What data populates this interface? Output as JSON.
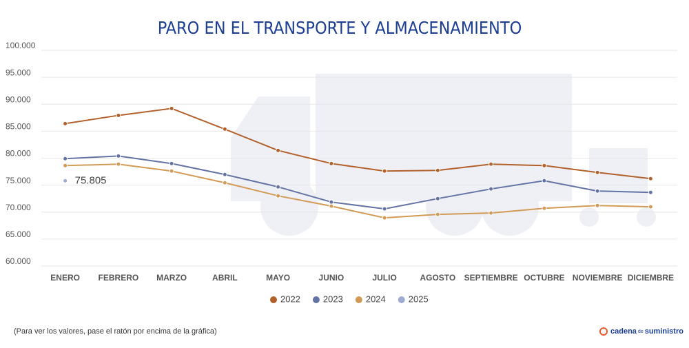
{
  "chart_data": {
    "type": "line",
    "title": "PARO EN EL TRANSPORTE Y ALMACENAMIENTO",
    "categories": [
      "ENERO",
      "FEBRERO",
      "MARZO",
      "ABRIL",
      "MAYO",
      "JUNIO",
      "JULIO",
      "AGOSTO",
      "SEPTIEMBRE",
      "OCTUBRE",
      "NOVIEMBRE",
      "DICIEMBRE"
    ],
    "series": [
      {
        "name": "2022",
        "color": "#b3612a",
        "values": [
          86400,
          87930,
          89210,
          85380,
          81430,
          79000,
          77600,
          77730,
          78880,
          78620,
          77350,
          76200
        ]
      },
      {
        "name": "2023",
        "color": "#6373a3",
        "values": [
          79900,
          80400,
          79000,
          76960,
          74670,
          71860,
          70590,
          72500,
          74290,
          75820,
          73900,
          73650
        ]
      },
      {
        "name": "2024",
        "color": "#d29a55",
        "values": [
          78620,
          78880,
          77600,
          75430,
          73010,
          71100,
          68930,
          69570,
          69820,
          70710,
          71220,
          70970
        ]
      },
      {
        "name": "2025",
        "color": "#9fabd3",
        "values": [
          75805,
          null,
          null,
          null,
          null,
          null,
          null,
          null,
          null,
          null,
          null,
          null
        ],
        "value_labels": [
          "75.805",
          null,
          null,
          null,
          null,
          null,
          null,
          null,
          null,
          null,
          null,
          null
        ]
      }
    ],
    "ylim": [
      60000,
      100000
    ],
    "yticks": [
      {
        "value": 60000,
        "label": "60.000"
      },
      {
        "value": 65000,
        "label": "65.000"
      },
      {
        "value": 70000,
        "label": "70.000"
      },
      {
        "value": 75000,
        "label": "75.000"
      },
      {
        "value": 80000,
        "label": "80.000"
      },
      {
        "value": 85000,
        "label": "85.000"
      },
      {
        "value": 90000,
        "label": "90.000"
      },
      {
        "value": 95000,
        "label": "95.000"
      },
      {
        "value": 100000,
        "label": "100.000"
      }
    ],
    "grid": true,
    "legend": "bottom",
    "note": "(Para ver los valores, pase el ratón por encima de la gráfica)",
    "source": {
      "brand": "cadena",
      "mid": "de",
      "end": "suministro"
    }
  }
}
